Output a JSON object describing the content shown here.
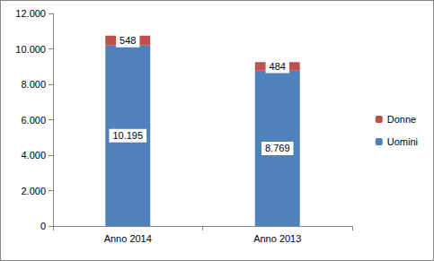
{
  "chart_data": {
    "type": "bar",
    "stacked": true,
    "categories": [
      "Anno 2014",
      "Anno 2013"
    ],
    "series": [
      {
        "name": "Uomini",
        "color": "#4F81BD",
        "values": [
          10195,
          8769
        ],
        "value_labels": [
          "10.195",
          "8.769"
        ]
      },
      {
        "name": "Donne",
        "color": "#C0504D",
        "values": [
          548,
          484
        ],
        "value_labels": [
          "548",
          "484"
        ]
      }
    ],
    "ylim": [
      0,
      12000
    ],
    "yticks": [
      0,
      {
        "value": 2000,
        "label": "2.000"
      },
      {
        "value": 4000,
        "label": "4.000"
      },
      {
        "value": 6000,
        "label": "6.000"
      },
      {
        "value": 8000,
        "label": "8.000"
      },
      {
        "value": 10000,
        "label": "10.000"
      },
      {
        "value": 12000,
        "label": "12.000"
      }
    ],
    "grid": false,
    "legend": "right",
    "data_labels": true
  }
}
